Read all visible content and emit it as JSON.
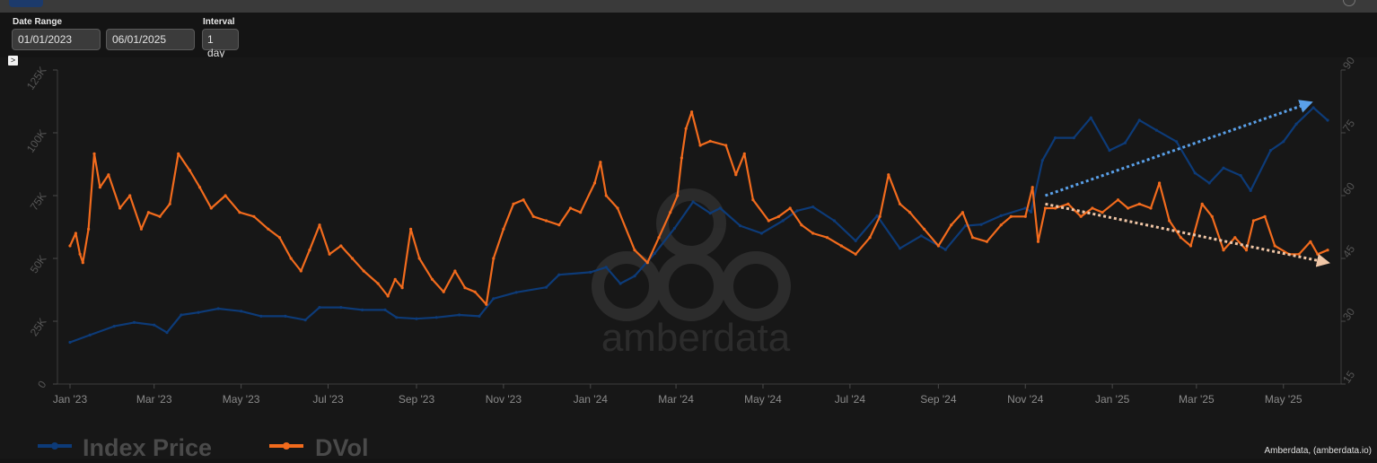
{
  "controls": {
    "date_range_label": "Date Range",
    "start_date": "01/01/2023",
    "end_date": "06/01/2025",
    "interval_label": "Interval",
    "interval": "1 day",
    "toggle_glyph": ">"
  },
  "watermark": "amberdata",
  "credit": "Amberdata, (amberdata.io)",
  "chart_data": {
    "type": "line",
    "x_range": [
      "2023-01-01",
      "2025-06-01"
    ],
    "x_ticks": [
      {
        "date": "2023-01-01",
        "label": "Jan '23"
      },
      {
        "date": "2023-03-01",
        "label": "Mar '23"
      },
      {
        "date": "2023-05-01",
        "label": "May '23"
      },
      {
        "date": "2023-07-01",
        "label": "Jul '23"
      },
      {
        "date": "2023-09-01",
        "label": "Sep '23"
      },
      {
        "date": "2023-11-01",
        "label": "Nov '23"
      },
      {
        "date": "2024-01-01",
        "label": "Jan '24"
      },
      {
        "date": "2024-03-01",
        "label": "Mar '24"
      },
      {
        "date": "2024-05-01",
        "label": "May '24"
      },
      {
        "date": "2024-07-01",
        "label": "Jul '24"
      },
      {
        "date": "2024-09-01",
        "label": "Sep '24"
      },
      {
        "date": "2024-11-01",
        "label": "Nov '24"
      },
      {
        "date": "2025-01-01",
        "label": "Jan '25"
      },
      {
        "date": "2025-03-01",
        "label": "Mar '25"
      },
      {
        "date": "2025-05-01",
        "label": "May '25"
      }
    ],
    "y_left": {
      "range": [
        0,
        125000
      ],
      "ticks": [
        0,
        25000,
        50000,
        75000,
        100000,
        125000
      ],
      "labels": [
        "0",
        "25K",
        "50K",
        "75K",
        "100K",
        "125K"
      ]
    },
    "y_right": {
      "range": [
        15,
        90
      ],
      "ticks": [
        15,
        30,
        45,
        60,
        75,
        90
      ],
      "labels": [
        "15",
        "30",
        "45",
        "60",
        "75",
        "90"
      ]
    },
    "legend_position": "bottom-left",
    "series": [
      {
        "name": "Index Price",
        "color": "#0d3b78",
        "axis": "left",
        "points": [
          [
            "2023-01-01",
            16600
          ],
          [
            "2023-01-15",
            19500
          ],
          [
            "2023-02-01",
            23000
          ],
          [
            "2023-02-15",
            24500
          ],
          [
            "2023-03-01",
            23500
          ],
          [
            "2023-03-10",
            20500
          ],
          [
            "2023-03-20",
            27500
          ],
          [
            "2023-04-01",
            28500
          ],
          [
            "2023-04-15",
            30000
          ],
          [
            "2023-05-01",
            29000
          ],
          [
            "2023-05-15",
            27000
          ],
          [
            "2023-06-01",
            27000
          ],
          [
            "2023-06-15",
            25500
          ],
          [
            "2023-06-25",
            30500
          ],
          [
            "2023-07-10",
            30500
          ],
          [
            "2023-07-25",
            29500
          ],
          [
            "2023-08-10",
            29500
          ],
          [
            "2023-08-18",
            26500
          ],
          [
            "2023-09-01",
            26000
          ],
          [
            "2023-09-15",
            26500
          ],
          [
            "2023-10-01",
            27500
          ],
          [
            "2023-10-15",
            27000
          ],
          [
            "2023-10-25",
            34000
          ],
          [
            "2023-11-10",
            36500
          ],
          [
            "2023-12-01",
            38500
          ],
          [
            "2023-12-10",
            43500
          ],
          [
            "2024-01-01",
            44500
          ],
          [
            "2024-01-12",
            46500
          ],
          [
            "2024-01-22",
            40000
          ],
          [
            "2024-02-01",
            43000
          ],
          [
            "2024-02-15",
            52000
          ],
          [
            "2024-02-29",
            62000
          ],
          [
            "2024-03-13",
            72500
          ],
          [
            "2024-03-25",
            68000
          ],
          [
            "2024-04-01",
            70000
          ],
          [
            "2024-04-15",
            63000
          ],
          [
            "2024-04-30",
            60000
          ],
          [
            "2024-05-15",
            65000
          ],
          [
            "2024-05-25",
            69000
          ],
          [
            "2024-06-05",
            70500
          ],
          [
            "2024-06-20",
            65000
          ],
          [
            "2024-07-05",
            57000
          ],
          [
            "2024-07-20",
            67000
          ],
          [
            "2024-08-05",
            54000
          ],
          [
            "2024-08-20",
            59000
          ],
          [
            "2024-09-06",
            53500
          ],
          [
            "2024-09-20",
            63000
          ],
          [
            "2024-10-01",
            63500
          ],
          [
            "2024-10-15",
            67000
          ],
          [
            "2024-11-01",
            70000
          ],
          [
            "2024-11-05",
            68500
          ],
          [
            "2024-11-13",
            89000
          ],
          [
            "2024-11-22",
            98000
          ],
          [
            "2024-12-05",
            98000
          ],
          [
            "2024-12-17",
            106000
          ],
          [
            "2024-12-30",
            93000
          ],
          [
            "2025-01-10",
            96000
          ],
          [
            "2025-01-20",
            105000
          ],
          [
            "2025-02-01",
            101000
          ],
          [
            "2025-02-15",
            96500
          ],
          [
            "2025-02-28",
            84000
          ],
          [
            "2025-03-10",
            80000
          ],
          [
            "2025-03-20",
            86000
          ],
          [
            "2025-04-01",
            83000
          ],
          [
            "2025-04-08",
            77000
          ],
          [
            "2025-04-22",
            93000
          ],
          [
            "2025-05-01",
            96500
          ],
          [
            "2025-05-10",
            103500
          ],
          [
            "2025-05-22",
            110000
          ],
          [
            "2025-06-01",
            105000
          ]
        ]
      },
      {
        "name": "DVol",
        "color": "#f26b1d",
        "axis": "right",
        "points": [
          [
            "2023-01-01",
            48
          ],
          [
            "2023-01-05",
            51
          ],
          [
            "2023-01-08",
            46
          ],
          [
            "2023-01-10",
            44
          ],
          [
            "2023-01-14",
            52
          ],
          [
            "2023-01-18",
            70
          ],
          [
            "2023-01-22",
            62
          ],
          [
            "2023-01-28",
            65
          ],
          [
            "2023-02-05",
            57
          ],
          [
            "2023-02-12",
            60
          ],
          [
            "2023-02-20",
            52
          ],
          [
            "2023-02-25",
            56
          ],
          [
            "2023-03-05",
            55
          ],
          [
            "2023-03-12",
            58
          ],
          [
            "2023-03-18",
            70
          ],
          [
            "2023-03-26",
            66
          ],
          [
            "2023-04-02",
            62
          ],
          [
            "2023-04-10",
            57
          ],
          [
            "2023-04-20",
            60
          ],
          [
            "2023-04-30",
            56
          ],
          [
            "2023-05-10",
            55
          ],
          [
            "2023-05-20",
            52
          ],
          [
            "2023-05-28",
            50
          ],
          [
            "2023-06-05",
            45
          ],
          [
            "2023-06-12",
            42
          ],
          [
            "2023-06-18",
            47
          ],
          [
            "2023-06-25",
            53
          ],
          [
            "2023-07-02",
            46
          ],
          [
            "2023-07-10",
            48
          ],
          [
            "2023-07-18",
            45
          ],
          [
            "2023-07-26",
            42
          ],
          [
            "2023-08-05",
            39
          ],
          [
            "2023-08-12",
            36
          ],
          [
            "2023-08-17",
            40
          ],
          [
            "2023-08-22",
            38
          ],
          [
            "2023-08-28",
            52
          ],
          [
            "2023-09-03",
            45
          ],
          [
            "2023-09-12",
            40
          ],
          [
            "2023-09-20",
            37
          ],
          [
            "2023-09-28",
            42
          ],
          [
            "2023-10-05",
            38
          ],
          [
            "2023-10-12",
            37
          ],
          [
            "2023-10-20",
            34
          ],
          [
            "2023-10-25",
            45
          ],
          [
            "2023-11-01",
            52
          ],
          [
            "2023-11-08",
            58
          ],
          [
            "2023-11-15",
            59
          ],
          [
            "2023-11-22",
            55
          ],
          [
            "2023-12-01",
            54
          ],
          [
            "2023-12-10",
            53
          ],
          [
            "2023-12-18",
            57
          ],
          [
            "2023-12-25",
            56
          ],
          [
            "2024-01-04",
            63
          ],
          [
            "2024-01-08",
            68
          ],
          [
            "2024-01-12",
            60
          ],
          [
            "2024-01-20",
            57
          ],
          [
            "2024-02-01",
            47
          ],
          [
            "2024-02-10",
            44
          ],
          [
            "2024-02-18",
            50
          ],
          [
            "2024-02-26",
            56
          ],
          [
            "2024-03-02",
            60
          ],
          [
            "2024-03-05",
            69
          ],
          [
            "2024-03-08",
            76
          ],
          [
            "2024-03-12",
            80
          ],
          [
            "2024-03-18",
            72
          ],
          [
            "2024-03-25",
            73
          ],
          [
            "2024-04-05",
            72
          ],
          [
            "2024-04-12",
            65
          ],
          [
            "2024-04-18",
            70
          ],
          [
            "2024-04-24",
            59
          ],
          [
            "2024-05-05",
            54
          ],
          [
            "2024-05-12",
            55
          ],
          [
            "2024-05-20",
            57
          ],
          [
            "2024-05-28",
            53
          ],
          [
            "2024-06-05",
            51
          ],
          [
            "2024-06-15",
            50
          ],
          [
            "2024-06-25",
            48
          ],
          [
            "2024-07-05",
            46
          ],
          [
            "2024-07-15",
            50
          ],
          [
            "2024-07-22",
            55
          ],
          [
            "2024-07-28",
            65
          ],
          [
            "2024-08-05",
            58
          ],
          [
            "2024-08-12",
            56
          ],
          [
            "2024-08-22",
            52
          ],
          [
            "2024-09-01",
            48
          ],
          [
            "2024-09-10",
            53
          ],
          [
            "2024-09-18",
            56
          ],
          [
            "2024-09-25",
            50
          ],
          [
            "2024-10-05",
            49
          ],
          [
            "2024-10-15",
            53
          ],
          [
            "2024-10-22",
            55
          ],
          [
            "2024-11-01",
            55
          ],
          [
            "2024-11-06",
            62
          ],
          [
            "2024-11-10",
            49
          ],
          [
            "2024-11-15",
            57
          ],
          [
            "2024-11-22",
            57
          ],
          [
            "2024-12-01",
            58
          ],
          [
            "2024-12-10",
            55
          ],
          [
            "2024-12-18",
            57
          ],
          [
            "2024-12-25",
            56
          ],
          [
            "2025-01-05",
            59
          ],
          [
            "2025-01-12",
            57
          ],
          [
            "2025-01-20",
            58
          ],
          [
            "2025-01-28",
            57
          ],
          [
            "2025-02-03",
            63
          ],
          [
            "2025-02-10",
            54
          ],
          [
            "2025-02-18",
            50
          ],
          [
            "2025-02-25",
            48
          ],
          [
            "2025-03-05",
            58
          ],
          [
            "2025-03-12",
            55
          ],
          [
            "2025-03-20",
            47
          ],
          [
            "2025-03-28",
            50
          ],
          [
            "2025-04-05",
            47
          ],
          [
            "2025-04-10",
            54
          ],
          [
            "2025-04-18",
            55
          ],
          [
            "2025-04-25",
            48
          ],
          [
            "2025-05-05",
            46
          ],
          [
            "2025-05-12",
            46
          ],
          [
            "2025-05-20",
            49
          ],
          [
            "2025-05-25",
            46
          ],
          [
            "2025-06-01",
            47
          ]
        ]
      }
    ],
    "annotations": [
      {
        "name": "index-uptrend-arrow",
        "color": "#5aa0e8",
        "from": [
          "2024-11-15",
          75000
        ],
        "to": [
          "2025-05-20",
          112000
        ],
        "axis": "left"
      },
      {
        "name": "dvol-downtrend-arrow",
        "color": "#f0c6a6",
        "from": [
          "2024-11-15",
          58
        ],
        "to": [
          "2025-06-01",
          44
        ],
        "axis": "right"
      }
    ]
  }
}
